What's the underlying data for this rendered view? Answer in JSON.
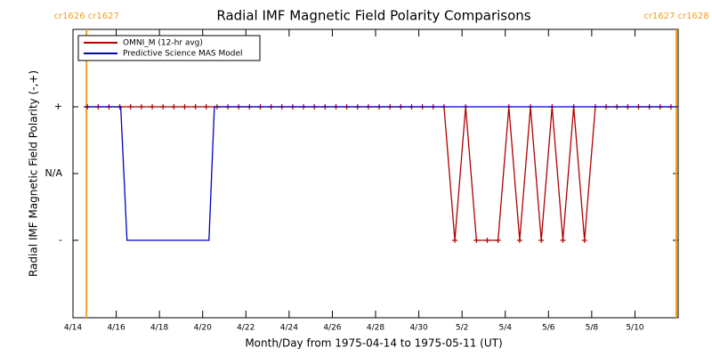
{
  "chart_data": {
    "type": "line",
    "title": "Radial IMF Magnetic Field Polarity Comparisons",
    "x_label": "Month/Day from 1975-04-14 to 1975-05-11 (UT)",
    "y_label": "Radial IMF Magnetic Field Polarity (-,+)",
    "xlim": [
      "1975-04-14T00:00",
      "1975-05-12T00:00"
    ],
    "xticks": [
      {
        "value": "1975-04-14T00:00",
        "label": "4/14"
      },
      {
        "value": "1975-04-16T00:00",
        "label": "4/16"
      },
      {
        "value": "1975-04-18T00:00",
        "label": "4/18"
      },
      {
        "value": "1975-04-20T00:00",
        "label": "4/20"
      },
      {
        "value": "1975-04-22T00:00",
        "label": "4/22"
      },
      {
        "value": "1975-04-24T00:00",
        "label": "4/24"
      },
      {
        "value": "1975-04-26T00:00",
        "label": "4/26"
      },
      {
        "value": "1975-04-28T00:00",
        "label": "4/28"
      },
      {
        "value": "1975-04-30T00:00",
        "label": "4/30"
      },
      {
        "value": "1975-05-02T00:00",
        "label": "5/2"
      },
      {
        "value": "1975-05-04T00:00",
        "label": "5/4"
      },
      {
        "value": "1975-05-06T00:00",
        "label": "5/6"
      },
      {
        "value": "1975-05-08T00:00",
        "label": "5/8"
      },
      {
        "value": "1975-05-10T00:00",
        "label": "5/10"
      }
    ],
    "ylim": [
      -2.16,
      2.16
    ],
    "yticks": [
      {
        "value": 1,
        "label": "+"
      },
      {
        "value": 0,
        "label": "N/A"
      },
      {
        "value": -1,
        "label": "-"
      }
    ],
    "annotations": [
      {
        "text": "cr1626 cr1627",
        "x": "1975-04-14T15:00",
        "color": "#f0a020"
      },
      {
        "text": "cr1627 cr1628",
        "x": "1975-05-11T22:00",
        "color": "#f0a020"
      }
    ],
    "series": [
      {
        "name": "OMNI_M (12-hr avg)",
        "color": "#b00000",
        "markers": true,
        "x": [
          "1975-04-14T16:00",
          "1975-04-15T04:00",
          "1975-04-15T16:00",
          "1975-04-16T04:00",
          "1975-04-16T16:00",
          "1975-04-17T04:00",
          "1975-04-17T16:00",
          "1975-04-18T04:00",
          "1975-04-18T16:00",
          "1975-04-19T04:00",
          "1975-04-19T16:00",
          "1975-04-20T04:00",
          "1975-04-20T16:00",
          "1975-04-21T04:00",
          "1975-04-21T16:00",
          "1975-04-22T04:00",
          "1975-04-22T16:00",
          "1975-04-23T04:00",
          "1975-04-23T16:00",
          "1975-04-24T04:00",
          "1975-04-24T16:00",
          "1975-04-25T04:00",
          "1975-04-25T16:00",
          "1975-04-26T04:00",
          "1975-04-26T16:00",
          "1975-04-27T04:00",
          "1975-04-27T16:00",
          "1975-04-28T04:00",
          "1975-04-28T16:00",
          "1975-04-29T04:00",
          "1975-04-29T16:00",
          "1975-04-30T04:00",
          "1975-04-30T16:00",
          "1975-05-01T04:00",
          "1975-05-01T16:00",
          "1975-05-02T04:00",
          "1975-05-02T16:00",
          "1975-05-03T04:00",
          "1975-05-03T16:00",
          "1975-05-04T04:00",
          "1975-05-04T16:00",
          "1975-05-05T04:00",
          "1975-05-05T16:00",
          "1975-05-06T04:00",
          "1975-05-06T16:00",
          "1975-05-07T04:00",
          "1975-05-07T16:00",
          "1975-05-08T04:00",
          "1975-05-08T16:00",
          "1975-05-09T04:00",
          "1975-05-09T16:00",
          "1975-05-10T04:00",
          "1975-05-10T16:00",
          "1975-05-11T04:00",
          "1975-05-11T16:00"
        ],
        "values": [
          1,
          1,
          1,
          1,
          1,
          1,
          1,
          1,
          1,
          1,
          1,
          1,
          1,
          1,
          1,
          1,
          1,
          1,
          1,
          1,
          1,
          1,
          1,
          1,
          1,
          1,
          1,
          1,
          1,
          1,
          1,
          1,
          1,
          1,
          -1,
          1,
          -1,
          -1,
          -1,
          1,
          -1,
          1,
          -1,
          1,
          -1,
          1,
          -1,
          1,
          1,
          1,
          1,
          1,
          1,
          1,
          1
        ]
      },
      {
        "name": "Predictive Science MAS Model",
        "color": "#0000c0",
        "markers": false,
        "x": [
          "1975-04-14T12:00",
          "1975-04-16T05:00",
          "1975-04-16T12:00",
          "1975-04-20T07:00",
          "1975-04-20T13:00",
          "1975-05-12T00:00"
        ],
        "values": [
          1,
          1,
          -1,
          -1,
          1,
          1
        ]
      }
    ]
  }
}
